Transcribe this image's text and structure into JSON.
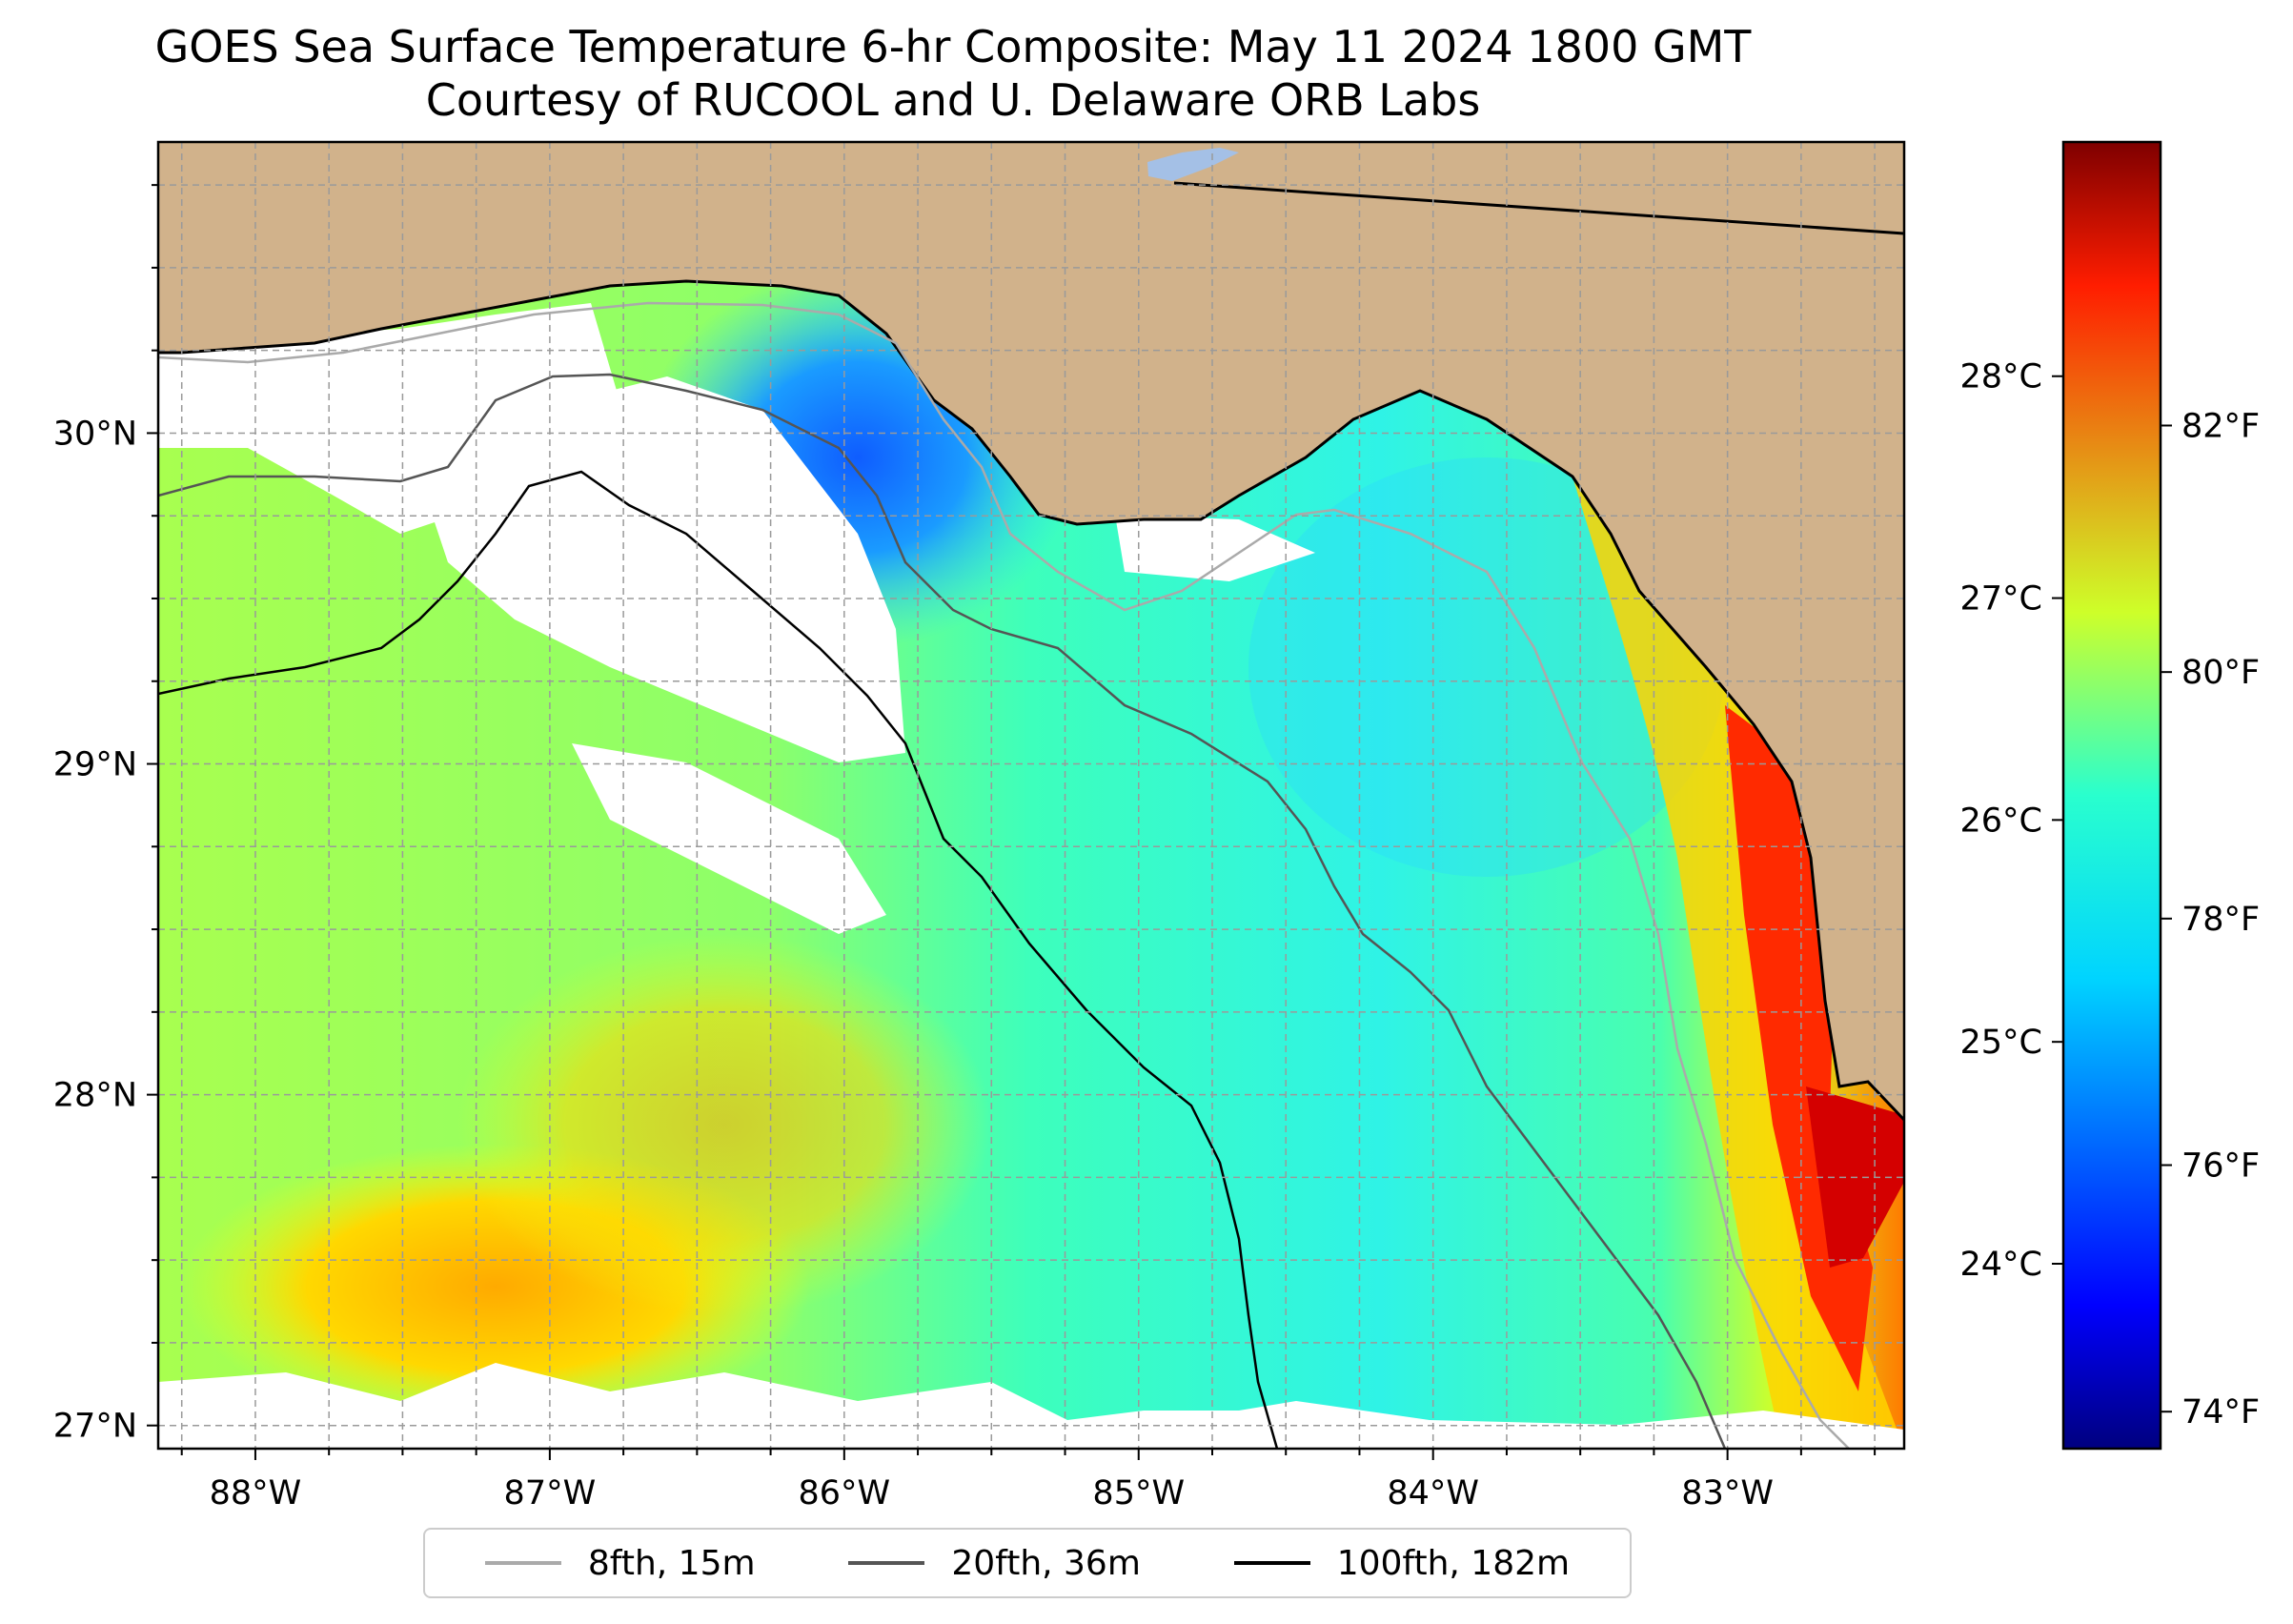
{
  "title": {
    "line1": "GOES Sea Surface Temperature 6-hr Composite: May 11 2024 1800 GMT",
    "line2": "Courtesy of RUCOOL and U. Delaware ORB Labs"
  },
  "map": {
    "region": "Florida Big Bend / NE Gulf of Mexico",
    "extent_lon": [
      -88.33,
      -82.4
    ],
    "extent_lat": [
      26.93,
      30.88
    ],
    "lon_ticks": [
      {
        "value": -88,
        "label": "88°W"
      },
      {
        "value": -87,
        "label": "87°W"
      },
      {
        "value": -86,
        "label": "86°W"
      },
      {
        "value": -85,
        "label": "85°W"
      },
      {
        "value": -84,
        "label": "84°W"
      },
      {
        "value": -83,
        "label": "83°W"
      }
    ],
    "lat_ticks": [
      {
        "value": 30,
        "label": "30°N"
      },
      {
        "value": 29,
        "label": "29°N"
      },
      {
        "value": 28,
        "label": "28°N"
      },
      {
        "value": 27,
        "label": "27°N"
      }
    ],
    "gridlines": true,
    "colors": {
      "land": "#d1b28b",
      "coastline": "#000000",
      "no_data": "#ffffff",
      "lake": "#a4c0e6"
    }
  },
  "colorbar": {
    "colormap": "jet",
    "range_f": [
      73.7,
      84.3
    ],
    "celsius_ticks": [
      {
        "value": 24,
        "label": "24°C"
      },
      {
        "value": 25,
        "label": "25°C"
      },
      {
        "value": 26,
        "label": "26°C"
      },
      {
        "value": 27,
        "label": "27°C"
      },
      {
        "value": 28,
        "label": "28°C"
      }
    ],
    "fahrenheit_ticks": [
      {
        "value": 74,
        "label": "74°F"
      },
      {
        "value": 76,
        "label": "76°F"
      },
      {
        "value": 78,
        "label": "78°F"
      },
      {
        "value": 80,
        "label": "80°F"
      },
      {
        "value": 82,
        "label": "82°F"
      }
    ]
  },
  "legend": {
    "items": [
      {
        "label": "8fth, 15m",
        "color": "#aaaaaa"
      },
      {
        "label": "20fth, 36m",
        "color": "#555555"
      },
      {
        "label": "100fth, 182m",
        "color": "#000000"
      }
    ]
  }
}
